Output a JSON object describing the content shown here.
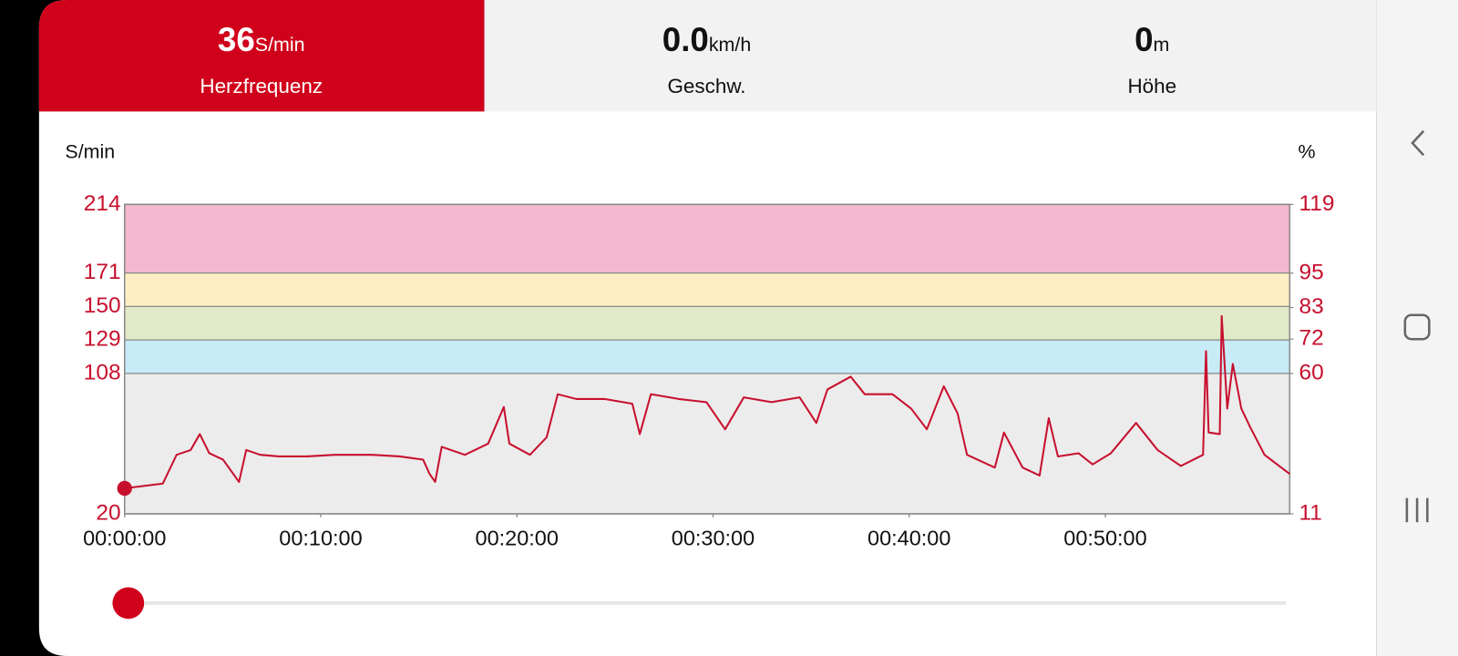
{
  "tabs": [
    {
      "value": "36",
      "unit": "S/min",
      "label": "Herzfrequenz"
    },
    {
      "value": "0.0",
      "unit": "km/h",
      "label": "Geschw."
    },
    {
      "value": "0",
      "unit": "m",
      "label": "Höhe"
    }
  ],
  "chart_data": {
    "type": "line",
    "y_label": "S/min",
    "y2_label": "%",
    "color": "#c8102e",
    "x": [
      0,
      117,
      159,
      202,
      230,
      259,
      301,
      350,
      372,
      415,
      472,
      557,
      643,
      757,
      842,
      913,
      933,
      950,
      970,
      1041,
      1112,
      1160,
      1177,
      1240,
      1291,
      1325,
      1382,
      1468,
      1553,
      1576,
      1610,
      1695,
      1780,
      1837,
      1894,
      1979,
      2065,
      2116,
      2150,
      2221,
      2264,
      2349,
      2406,
      2454,
      2506,
      2548,
      2577,
      2662,
      2690,
      2747,
      2799,
      2827,
      2855,
      2918,
      2961,
      3017,
      3094,
      3160,
      3231,
      3299,
      3308,
      3316,
      3350,
      3356,
      3373,
      3390,
      3416,
      3444,
      3487,
      3564
    ],
    "values": [
      36,
      39,
      57,
      60,
      70,
      58,
      54,
      40,
      60,
      57,
      56,
      56,
      57,
      57,
      56,
      54,
      45,
      40,
      62,
      57,
      64,
      87,
      64,
      57,
      68,
      95,
      92,
      92,
      89,
      70,
      95,
      92,
      90,
      73,
      93,
      90,
      93,
      77,
      98,
      106,
      95,
      95,
      86,
      73,
      100,
      83,
      57,
      49,
      71,
      49,
      44,
      80,
      56,
      58,
      51,
      58,
      77,
      60,
      50,
      57,
      122,
      71,
      70,
      144,
      86,
      114,
      86,
      74,
      57,
      45
    ],
    "xlim": [
      0,
      3564
    ],
    "xticks": [
      {
        "value": 0,
        "label": "00:00:00"
      },
      {
        "value": 600,
        "label": "00:10:00"
      },
      {
        "value": 1200,
        "label": "00:20:00"
      },
      {
        "value": 1800,
        "label": "00:30:00"
      },
      {
        "value": 2400,
        "label": "00:40:00"
      },
      {
        "value": 3000,
        "label": "00:50:00"
      }
    ],
    "ylim": [
      20,
      214
    ],
    "yticks": [
      20,
      108,
      129,
      150,
      171,
      214
    ],
    "y2lim": [
      11,
      119
    ],
    "y2ticks": [
      11,
      60,
      72,
      83,
      95,
      119
    ],
    "zone_colors": [
      "#ececec",
      "#c8ebf8",
      "#e1eac8",
      "#fdefc3",
      "#f4b8cf"
    ]
  }
}
